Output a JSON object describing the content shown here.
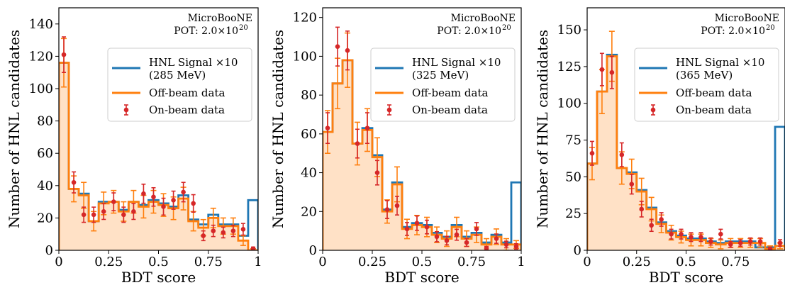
{
  "colors": {
    "signal": "#1f77b4",
    "offbeam": "#ff7f0e",
    "offbeam_fill": "#ffe1c6",
    "onbeam": "#d62728"
  },
  "chart_data": [
    {
      "type": "histogram",
      "annotation": {
        "experiment": "MicroBooNE",
        "pot": "POT: 2.0×10",
        "pot_exp": "20"
      },
      "xlabel": "BDT score",
      "ylabel": "Number of HNL candidates",
      "xlim": [
        0,
        1
      ],
      "ylim": [
        0,
        150
      ],
      "xticks": [
        0,
        0.25,
        0.5,
        0.75,
        1
      ],
      "xtick_labels": [
        "0",
        "0.25",
        "0.5",
        "0.75",
        "1"
      ],
      "yticks": [
        0,
        20,
        40,
        60,
        80,
        100,
        120,
        140
      ],
      "ytick_labels": [
        "0",
        "20",
        "40",
        "60",
        "80",
        "100",
        "120",
        "140"
      ],
      "bin_edges": [
        0,
        0.05,
        0.1,
        0.15,
        0.2,
        0.25,
        0.3,
        0.35,
        0.4,
        0.45,
        0.5,
        0.55,
        0.6,
        0.65,
        0.7,
        0.75,
        0.8,
        0.85,
        0.9,
        0.95,
        1.0
      ],
      "legend": {
        "placement": "upper-right",
        "signal": "HNL Signal ×10",
        "signal_mass": "(285 MeV)",
        "offbeam": "Off-beam data",
        "onbeam": "On-beam data"
      },
      "series": [
        {
          "name": "HNL Signal ×10",
          "values": [
            116,
            38,
            35,
            18,
            30,
            30,
            25,
            30,
            28,
            31,
            29,
            27,
            34,
            19,
            16,
            22,
            16,
            16,
            9,
            31
          ]
        },
        {
          "name": "Off-beam data",
          "values": [
            116,
            38,
            34,
            18,
            29,
            30,
            24,
            30,
            27,
            30,
            28,
            26,
            32,
            18,
            14,
            20,
            15,
            15,
            6,
            0
          ],
          "errors": [
            15,
            8,
            8,
            6,
            7,
            7,
            6,
            7,
            7,
            7,
            7,
            7,
            7,
            6,
            5,
            6,
            5,
            5,
            3,
            1
          ]
        },
        {
          "name": "On-beam data",
          "values": [
            121,
            42,
            22,
            22,
            24,
            30,
            22,
            24,
            35,
            33,
            27,
            31,
            36,
            29,
            9,
            12,
            11,
            12,
            13,
            1
          ],
          "errors": [
            11,
            6.5,
            4.7,
            4.7,
            4.9,
            5.5,
            4.7,
            4.9,
            5.9,
            5.7,
            5.2,
            5.6,
            6,
            5.4,
            3,
            3.5,
            3.3,
            3.5,
            3.6,
            1
          ]
        }
      ]
    },
    {
      "type": "histogram",
      "annotation": {
        "experiment": "MicroBooNE",
        "pot": "POT: 2.0×10",
        "pot_exp": "20"
      },
      "xlabel": "BDT score",
      "ylabel": "Number of HNL candidates",
      "xlim": [
        0,
        1
      ],
      "ylim": [
        0,
        125
      ],
      "xticks": [
        0,
        0.25,
        0.5,
        0.75,
        1
      ],
      "xtick_labels": [
        "0",
        "0.25",
        "0.5",
        "0.75",
        "1"
      ],
      "yticks": [
        0,
        20,
        40,
        60,
        80,
        100,
        120
      ],
      "ytick_labels": [
        "0",
        "20",
        "40",
        "60",
        "80",
        "100",
        "120"
      ],
      "bin_edges": [
        0,
        0.05,
        0.1,
        0.15,
        0.2,
        0.25,
        0.3,
        0.35,
        0.4,
        0.45,
        0.5,
        0.55,
        0.6,
        0.65,
        0.7,
        0.75,
        0.8,
        0.85,
        0.9,
        0.95,
        1.0
      ],
      "legend": {
        "placement": "upper-right",
        "signal": "HNL Signal ×10",
        "signal_mass": "(325 MeV)",
        "offbeam": "Off-beam data",
        "onbeam": "On-beam data"
      },
      "series": [
        {
          "name": "HNL Signal ×10",
          "values": [
            61,
            86,
            98,
            55,
            63,
            49,
            21,
            35,
            12,
            14,
            13,
            9,
            7,
            13,
            7,
            9,
            4,
            8,
            4,
            35
          ]
        },
        {
          "name": "Off-beam data",
          "values": [
            61,
            86,
            98,
            55,
            62,
            48,
            20,
            34,
            11,
            13,
            12,
            8,
            6,
            12,
            6,
            8,
            3,
            7,
            3,
            3
          ],
          "errors": [
            11,
            13,
            14,
            11,
            11,
            10,
            6,
            9,
            5,
            5,
            5,
            4,
            4,
            5,
            4,
            4,
            3,
            4,
            3,
            2
          ]
        },
        {
          "name": "On-beam data",
          "values": [
            63,
            105,
            103,
            55,
            63,
            40,
            21,
            23,
            11,
            14,
            12,
            7,
            5,
            8,
            4,
            11,
            1,
            6,
            3,
            2
          ],
          "errors": [
            7.9,
            10,
            10,
            7.4,
            7.9,
            6.3,
            4.6,
            4.8,
            3.3,
            3.7,
            3.5,
            2.6,
            2.2,
            2.8,
            2,
            3.3,
            1,
            2.4,
            1.7,
            1.4
          ]
        }
      ]
    },
    {
      "type": "histogram",
      "annotation": {
        "experiment": "MicroBooNE",
        "pot": "POT: 2.0×10",
        "pot_exp": "20"
      },
      "xlabel": "BDT score",
      "ylabel": "Number of HNL candidates",
      "xlim": [
        0,
        1
      ],
      "ylim": [
        0,
        165
      ],
      "xticks": [
        0,
        0.25,
        0.5,
        0.75
      ],
      "xtick_labels": [
        "0",
        "0.25",
        "0.5",
        "0.75"
      ],
      "yticks": [
        0,
        25,
        50,
        75,
        100,
        125,
        150
      ],
      "ytick_labels": [
        "0",
        "25",
        "50",
        "75",
        "100",
        "125",
        "150"
      ],
      "bin_edges": [
        0,
        0.05,
        0.1,
        0.15,
        0.2,
        0.25,
        0.3,
        0.35,
        0.4,
        0.45,
        0.5,
        0.55,
        0.6,
        0.65,
        0.7,
        0.75,
        0.8,
        0.85,
        0.9,
        0.95,
        1.0
      ],
      "legend": {
        "placement": "upper-right",
        "signal": "HNL Signal ×10",
        "signal_mass": "(365 MeV)",
        "offbeam": "Off-beam data",
        "onbeam": "On-beam data"
      },
      "series": [
        {
          "name": "HNL Signal ×10",
          "values": [
            59,
            108,
            133,
            56,
            53,
            41,
            29,
            19,
            13,
            10,
            8,
            8,
            6,
            5,
            6,
            6,
            6,
            2,
            2,
            84
          ]
        },
        {
          "name": "Off-beam data",
          "values": [
            59,
            108,
            132,
            56,
            52,
            40,
            28,
            18,
            12,
            9,
            7,
            7,
            5,
            4,
            5,
            5,
            5,
            5,
            1,
            3
          ],
          "errors": [
            11,
            15,
            17,
            11,
            10,
            9,
            8,
            6,
            5,
            4,
            4,
            4,
            3,
            3,
            3,
            3,
            3,
            3,
            2,
            2
          ]
        },
        {
          "name": "On-beam data",
          "values": [
            66,
            123,
            121,
            65,
            45,
            28,
            17,
            21,
            11,
            11,
            9,
            9,
            6,
            11,
            4,
            5,
            6,
            6,
            1,
            5
          ],
          "errors": [
            8.1,
            11,
            11,
            8.1,
            6.7,
            5.3,
            4.1,
            4.6,
            3.3,
            3.3,
            3,
            3,
            2.4,
            3.3,
            2,
            2.2,
            2.4,
            2.4,
            1,
            2.2
          ]
        }
      ]
    }
  ]
}
